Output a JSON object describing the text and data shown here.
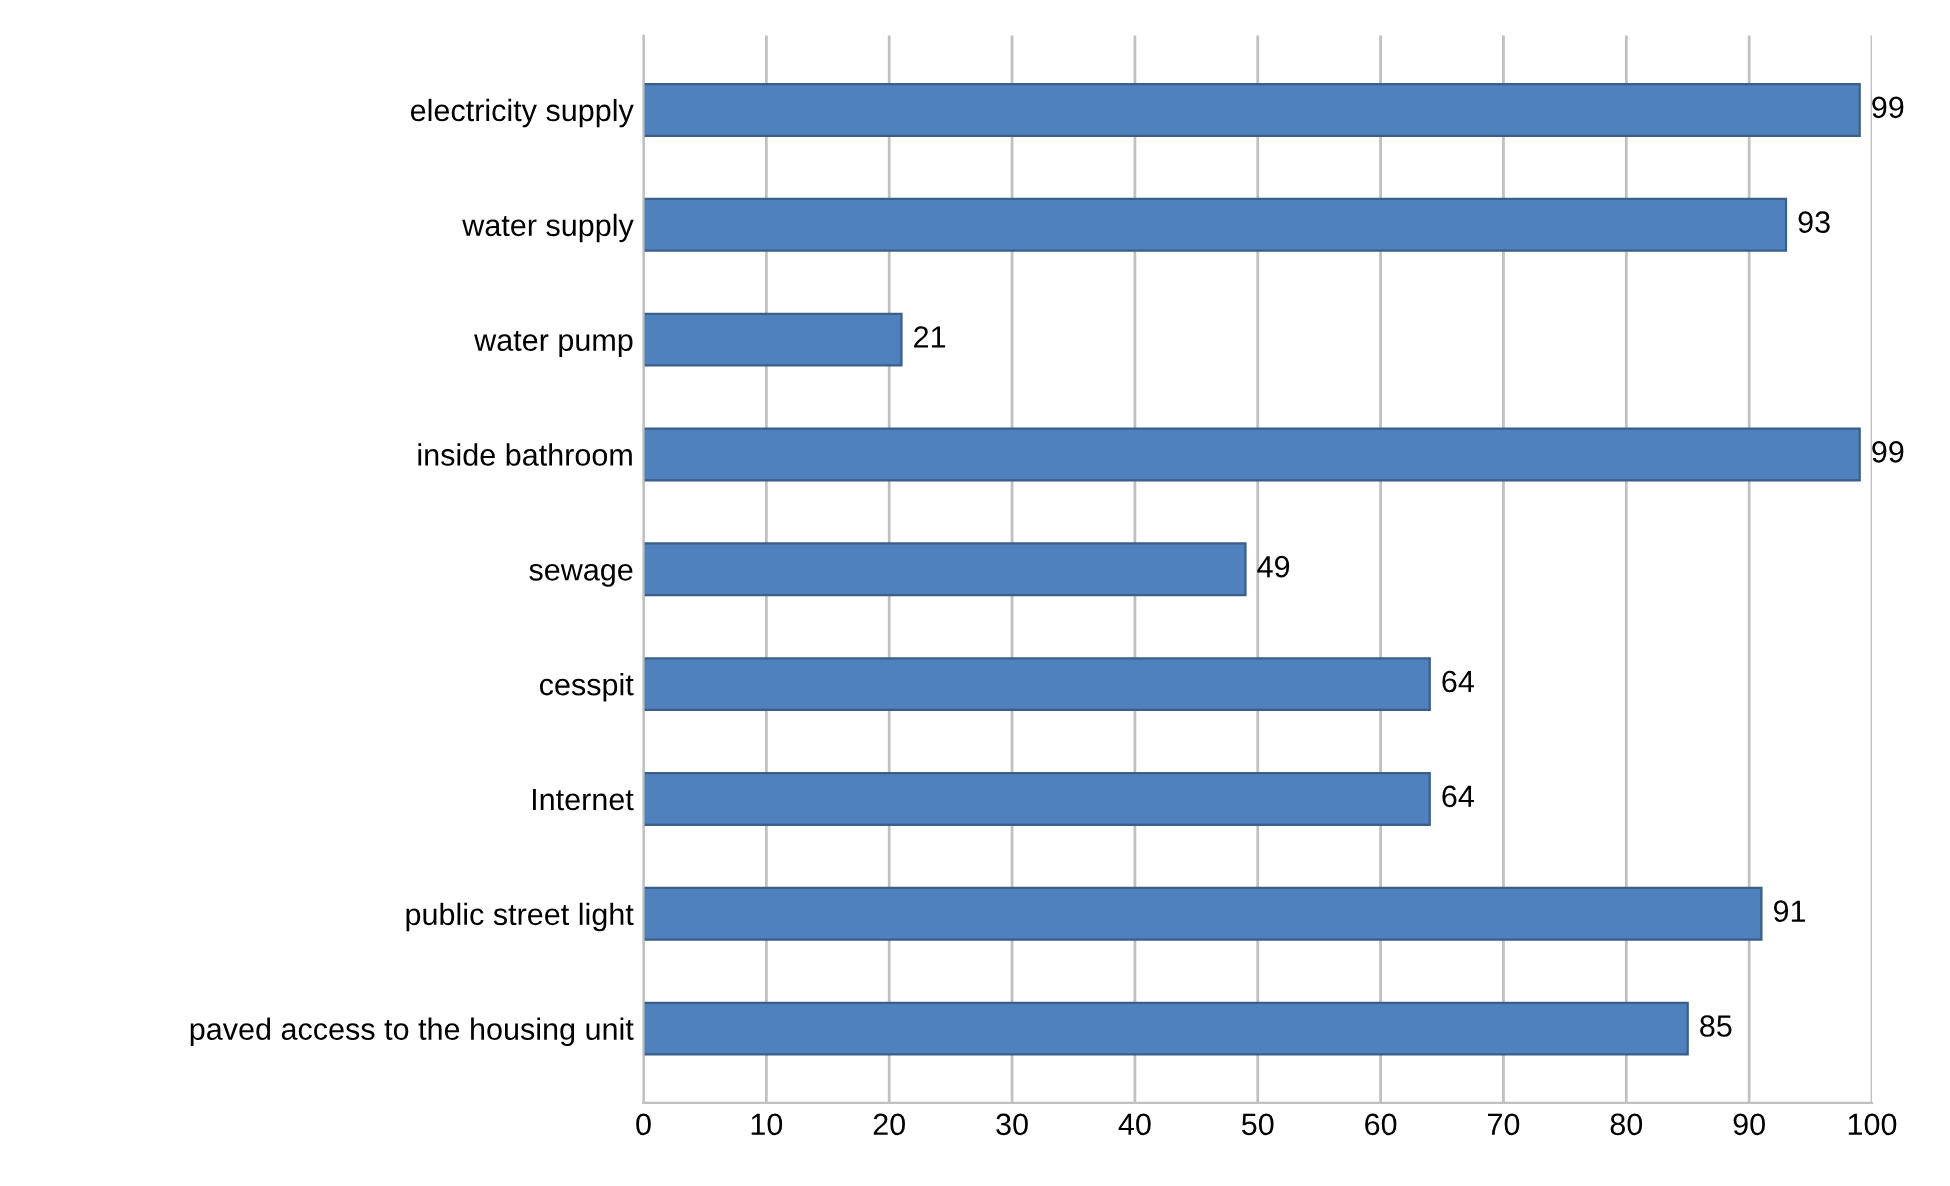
{
  "chart_data": {
    "type": "bar",
    "orientation": "horizontal",
    "categories": [
      "electricity supply",
      "water supply",
      "water pump",
      "inside bathroom",
      "sewage",
      "cesspit",
      "Internet",
      "public street light",
      "paved access to the housing unit"
    ],
    "values": [
      99,
      93,
      21,
      99,
      49,
      64,
      64,
      91,
      85
    ],
    "color": "#4f81bd",
    "data_labels": true,
    "xlim": [
      0,
      100
    ],
    "xticks": [
      0,
      10,
      20,
      30,
      40,
      50,
      60,
      70,
      80,
      90,
      100
    ],
    "grid": "x",
    "legend": false
  }
}
